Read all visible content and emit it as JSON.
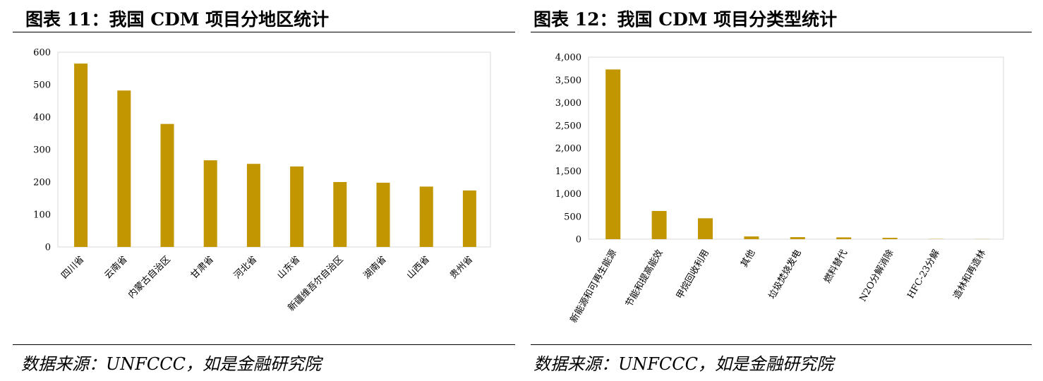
{
  "figures": [
    {
      "title": "图表 11：我国 CDM 项目分地区统计",
      "source": "数据来源：UNFCCC，如是金融研究院"
    },
    {
      "title": "图表 12：我国 CDM 项目分类型统计",
      "source": "数据来源：UNFCCC，如是金融研究院"
    }
  ],
  "colors": {
    "bar": "#C29600",
    "frame": "#D9D9D9"
  },
  "chart_data": [
    {
      "type": "bar",
      "title": "图表 11：我国 CDM 项目分地区统计",
      "categories": [
        "四川省",
        "云南省",
        "内蒙古自治区",
        "甘肃省",
        "河北省",
        "山东省",
        "新疆维吾尔自治区",
        "湖南省",
        "山西省",
        "贵州省"
      ],
      "values": [
        565,
        482,
        379,
        267,
        256,
        248,
        200,
        198,
        186,
        174
      ],
      "yticks": [
        "0",
        "100",
        "200",
        "300",
        "400",
        "500",
        "600"
      ],
      "ylim": [
        0,
        600
      ],
      "xlabel": "",
      "ylabel": "",
      "grid": false,
      "legend": "none"
    },
    {
      "type": "bar",
      "title": "图表 12：我国 CDM 项目分类型统计",
      "categories": [
        "新能源和可再生能源",
        "节能和提高能效",
        "甲烷回收利用",
        "其他",
        "垃圾焚烧发电",
        "燃料替代",
        "N2O分解消除",
        "HFC-23分解",
        "造林和再造林"
      ],
      "values": [
        3730,
        620,
        460,
        60,
        45,
        40,
        30,
        5,
        3
      ],
      "yticks": [
        "0",
        "500",
        "1,000",
        "1,500",
        "2,000",
        "2,500",
        "3,000",
        "3,500",
        "4,000"
      ],
      "ylim": [
        0,
        4000
      ],
      "xlabel": "",
      "ylabel": "",
      "grid": false,
      "legend": "none"
    }
  ]
}
